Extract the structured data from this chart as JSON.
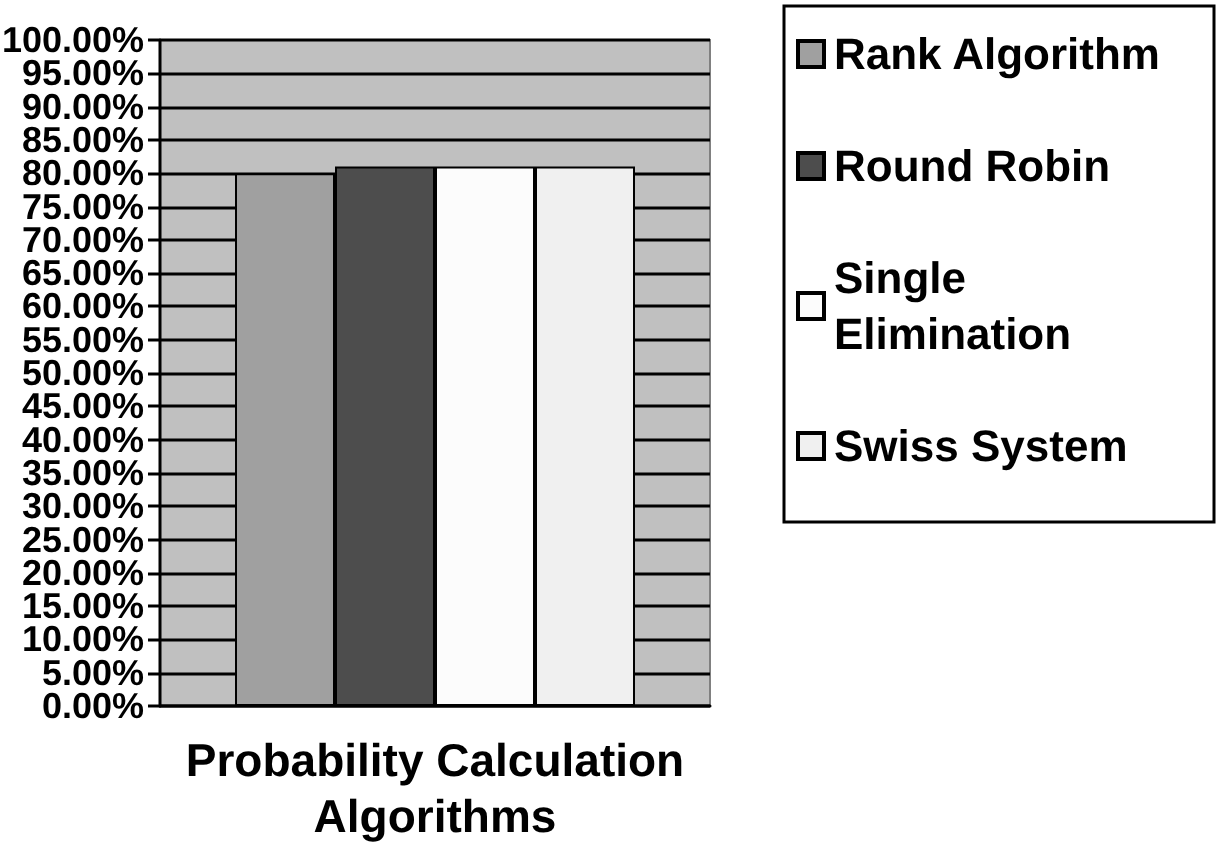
{
  "chart_data": {
    "type": "bar",
    "xlabel": "Probability Calculation Algorithms",
    "categories": [
      null
    ],
    "series": [
      {
        "name": "Rank Algorithm",
        "color": "#a0a0a0",
        "values": [
          80
        ]
      },
      {
        "name": "Round Robin",
        "color": "#4d4d4d",
        "values": [
          81
        ]
      },
      {
        "name": "Single Elimination",
        "color": "#fcfcfc",
        "values": [
          81
        ]
      },
      {
        "name": "Swiss System",
        "color": "#f0f0f0",
        "values": [
          81
        ]
      }
    ],
    "ylim": [
      0,
      100
    ],
    "yticks": [
      {
        "value": 0,
        "label": "0.00%"
      },
      {
        "value": 5,
        "label": "5.00%"
      },
      {
        "value": 10,
        "label": "10.00%"
      },
      {
        "value": 15,
        "label": "15.00%"
      },
      {
        "value": 20,
        "label": "20.00%"
      },
      {
        "value": 25,
        "label": "25.00%"
      },
      {
        "value": 30,
        "label": "30.00%"
      },
      {
        "value": 35,
        "label": "35.00%"
      },
      {
        "value": 40,
        "label": "40.00%"
      },
      {
        "value": 45,
        "label": "45.00%"
      },
      {
        "value": 50,
        "label": "50.00%"
      },
      {
        "value": 55,
        "label": "55.00%"
      },
      {
        "value": 60,
        "label": "60.00%"
      },
      {
        "value": 65,
        "label": "65.00%"
      },
      {
        "value": 70,
        "label": "70.00%"
      },
      {
        "value": 75,
        "label": "75.00%"
      },
      {
        "value": 80,
        "label": "80.00%"
      },
      {
        "value": 85,
        "label": "85.00%"
      },
      {
        "value": 90,
        "label": "90.00%"
      },
      {
        "value": 95,
        "label": "95.00%"
      },
      {
        "value": 100,
        "label": "100.00%"
      }
    ],
    "grid": "y",
    "legend": "right"
  }
}
